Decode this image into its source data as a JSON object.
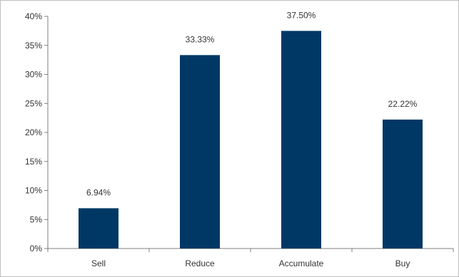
{
  "chart_data": {
    "type": "bar",
    "categories": [
      "Sell",
      "Reduce",
      "Accumulate",
      "Buy"
    ],
    "values": [
      6.94,
      33.33,
      37.5,
      22.22
    ],
    "data_labels": [
      "6.94%",
      "33.33%",
      "37.50%",
      "22.22%"
    ],
    "y_ticks": [
      {
        "value": 0,
        "label": "0%"
      },
      {
        "value": 5,
        "label": "5%"
      },
      {
        "value": 10,
        "label": "10%"
      },
      {
        "value": 15,
        "label": "15%"
      },
      {
        "value": 20,
        "label": "20%"
      },
      {
        "value": 25,
        "label": "25%"
      },
      {
        "value": 30,
        "label": "30%"
      },
      {
        "value": 35,
        "label": "35%"
      },
      {
        "value": 40,
        "label": "40%"
      }
    ],
    "ylim": [
      0,
      40
    ],
    "grid": false,
    "legend": "none",
    "bar_color": "#003865"
  }
}
